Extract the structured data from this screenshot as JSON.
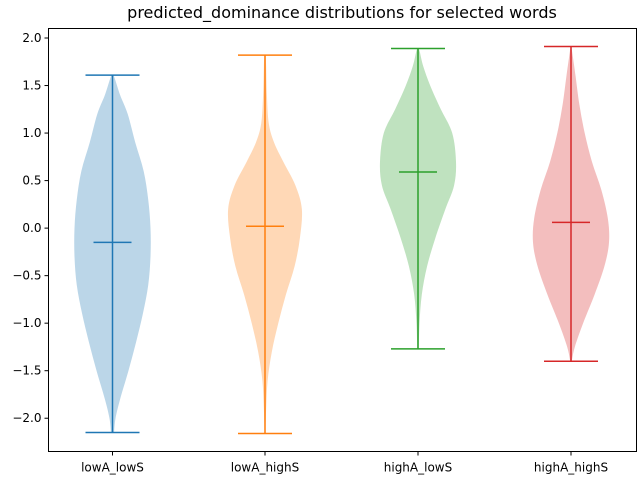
{
  "chart_data": {
    "type": "violin",
    "title": "predicted_dominance distributions for selected words",
    "xlabel": "",
    "ylabel": "",
    "categories": [
      "lowA_lowS",
      "lowA_highS",
      "highA_lowS",
      "highA_highS"
    ],
    "ylim": [
      -2.35,
      2.1
    ],
    "yticks": [
      -2.0,
      -1.5,
      -1.0,
      -0.5,
      0.0,
      0.5,
      1.0,
      1.5,
      2.0
    ],
    "ytick_labels": [
      "−2.0",
      "−1.5",
      "−1.0",
      "−0.5",
      "0.0",
      "0.5",
      "1.0",
      "1.5",
      "2.0"
    ],
    "grid": false,
    "legend": "none",
    "series": [
      {
        "category": "lowA_lowS",
        "color": "#1f77b4",
        "min": -2.15,
        "max": 1.61,
        "median": -0.15,
        "density_profile": [
          [
            -2.15,
            0.04
          ],
          [
            -2.0,
            0.08
          ],
          [
            -1.8,
            0.2
          ],
          [
            -1.5,
            0.42
          ],
          [
            -1.2,
            0.62
          ],
          [
            -0.9,
            0.8
          ],
          [
            -0.6,
            0.94
          ],
          [
            -0.3,
            1.0
          ],
          [
            0.0,
            1.0
          ],
          [
            0.3,
            0.94
          ],
          [
            0.6,
            0.82
          ],
          [
            0.9,
            0.6
          ],
          [
            1.2,
            0.4
          ],
          [
            1.4,
            0.2
          ],
          [
            1.55,
            0.08
          ],
          [
            1.61,
            0.03
          ]
        ]
      },
      {
        "category": "lowA_highS",
        "color": "#ff7f0e",
        "min": -2.16,
        "max": 1.82,
        "median": 0.02,
        "density_profile": [
          [
            -2.16,
            0.01
          ],
          [
            -1.9,
            0.03
          ],
          [
            -1.6,
            0.07
          ],
          [
            -1.3,
            0.18
          ],
          [
            -1.0,
            0.35
          ],
          [
            -0.7,
            0.55
          ],
          [
            -0.4,
            0.78
          ],
          [
            -0.1,
            0.92
          ],
          [
            0.2,
            0.97
          ],
          [
            0.45,
            0.8
          ],
          [
            0.7,
            0.48
          ],
          [
            0.9,
            0.24
          ],
          [
            1.1,
            0.1
          ],
          [
            1.4,
            0.05
          ],
          [
            1.7,
            0.03
          ],
          [
            1.82,
            0.02
          ]
        ]
      },
      {
        "category": "highA_lowS",
        "color": "#2ca02c",
        "min": -1.27,
        "max": 1.89,
        "median": 0.59,
        "density_profile": [
          [
            -1.27,
            0.02
          ],
          [
            -1.0,
            0.04
          ],
          [
            -0.7,
            0.1
          ],
          [
            -0.4,
            0.24
          ],
          [
            -0.1,
            0.46
          ],
          [
            0.2,
            0.72
          ],
          [
            0.45,
            0.95
          ],
          [
            0.7,
            1.0
          ],
          [
            1.0,
            0.9
          ],
          [
            1.25,
            0.6
          ],
          [
            1.5,
            0.32
          ],
          [
            1.7,
            0.14
          ],
          [
            1.85,
            0.05
          ],
          [
            1.89,
            0.02
          ]
        ]
      },
      {
        "category": "highA_highS",
        "color": "#d62728",
        "min": -1.4,
        "max": 1.91,
        "median": 0.06,
        "density_profile": [
          [
            -1.4,
            0.02
          ],
          [
            -1.25,
            0.1
          ],
          [
            -1.0,
            0.32
          ],
          [
            -0.7,
            0.62
          ],
          [
            -0.4,
            0.88
          ],
          [
            -0.15,
            1.0
          ],
          [
            0.1,
            0.97
          ],
          [
            0.4,
            0.8
          ],
          [
            0.7,
            0.55
          ],
          [
            1.0,
            0.36
          ],
          [
            1.3,
            0.22
          ],
          [
            1.6,
            0.12
          ],
          [
            1.8,
            0.05
          ],
          [
            1.91,
            0.01
          ]
        ]
      }
    ]
  }
}
